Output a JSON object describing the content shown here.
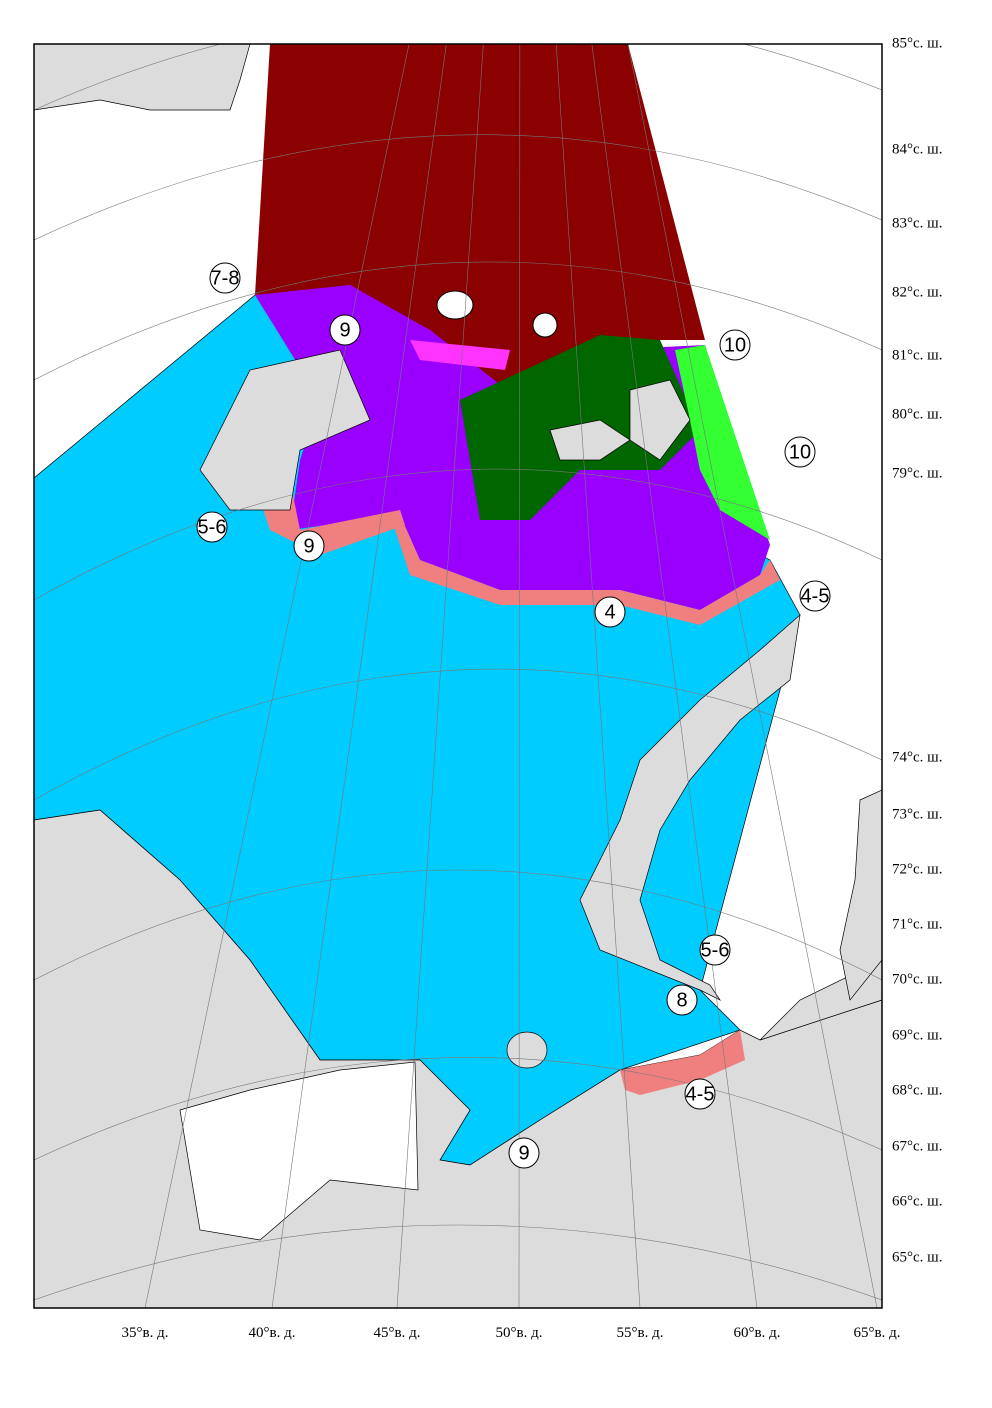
{
  "map": {
    "lat_labels": [
      "85°с. ш.",
      "84°с. ш.",
      "83°с. ш.",
      "82°с. ш.",
      "81°с. ш.",
      "80°с. ш.",
      "79°с. ш.",
      "74°с. ш.",
      "73°с. ш.",
      "72°с. ш.",
      "71°с. ш.",
      "70°с. ш.",
      "69°с. ш.",
      "68°с. ш.",
      "67°с. ш.",
      "66°с. ш.",
      "65°с. ш."
    ],
    "lon_labels": [
      "35°в. д.",
      "40°в. д.",
      "45°в. д.",
      "50°в. д.",
      "55°в. д.",
      "60°в. д.",
      "65°в. д."
    ],
    "ice_labels": [
      "9",
      "10",
      "10",
      "7-8",
      "5-6",
      "9",
      "4",
      "4-5",
      "5-6",
      "8",
      "4-5",
      "9"
    ]
  }
}
